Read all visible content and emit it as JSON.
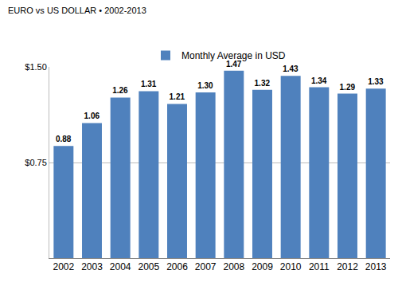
{
  "chart_data": {
    "type": "bar",
    "title": "EURO vs US DOLLAR • 2002-2013",
    "categories": [
      "2002",
      "2003",
      "2004",
      "2005",
      "2006",
      "2007",
      "2008",
      "2009",
      "2010",
      "2011",
      "2012",
      "2013"
    ],
    "series": [
      {
        "name": "Monthly Average in USD",
        "color": "#4f81bd",
        "values": [
          0.88,
          1.06,
          1.26,
          1.31,
          1.21,
          1.3,
          1.47,
          1.32,
          1.43,
          1.34,
          1.29,
          1.33
        ],
        "value_labels": [
          "0.88",
          "1.06",
          "1.26",
          "1.31",
          "1.21",
          "1.30",
          "1.47",
          "1.32",
          "1.43",
          "1.34",
          "1.29",
          "1.33"
        ]
      }
    ],
    "ylim": [
      0,
      1.5
    ],
    "yticks": [
      {
        "value": 0.75,
        "label": "$0.75"
      },
      {
        "value": 1.5,
        "label": "$1.50"
      }
    ],
    "grid": true,
    "legend": "top",
    "data_labels": true
  }
}
